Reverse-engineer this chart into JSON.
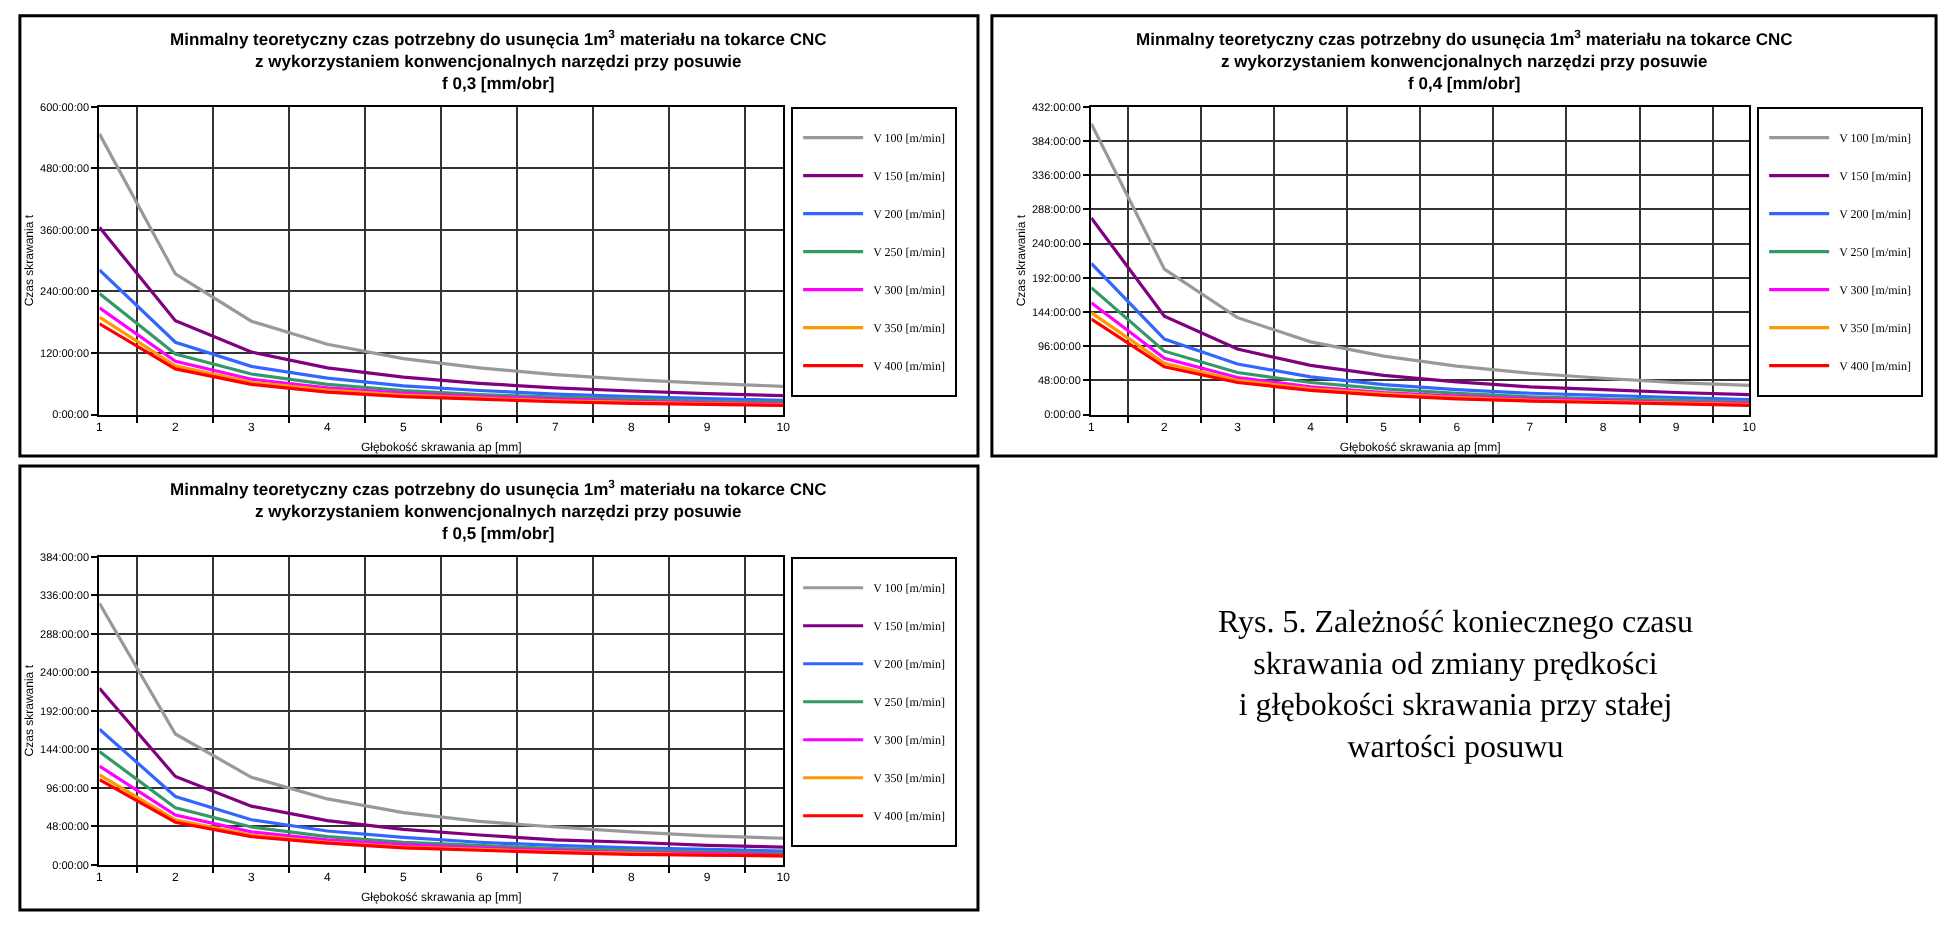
{
  "chart_data": [
    {
      "type": "line",
      "title": "Minmalny teoretyczny czas potrzebny do usunęcia 1m$^{3}$ materiału na tokarce CNC\nz wykorzystaniem konwencjonalnych narzędzi przy posuwie\nf 0,3 [mm/obr]",
      "xlabel": "Głębokość skrawania ap [mm]",
      "ylabel": "Czas skrawania t",
      "categories": [
        "1",
        "2",
        "3",
        "4",
        "5",
        "6",
        "7",
        "8",
        "9",
        "10"
      ],
      "ylim": [
        0,
        600
      ],
      "yticks": [
        {
          "value": 0,
          "label": "0:00:00"
        },
        {
          "value": 120,
          "label": "120:00:00"
        },
        {
          "value": 240,
          "label": "240:00:00"
        },
        {
          "value": 360,
          "label": "360:00:00"
        },
        {
          "value": 480,
          "label": "480:00:00"
        },
        {
          "value": 600,
          "label": "600:00:00"
        }
      ],
      "grid": true,
      "legend": "right",
      "series": [
        {
          "name": "V 100 [m/min]",
          "color": "#999999",
          "values": [
            547,
            274,
            182,
            137,
            109,
            91,
            78,
            68,
            61,
            55
          ]
        },
        {
          "name": "V 150 [m/min]",
          "color": "#800080",
          "values": [
            365,
            183,
            122,
            91,
            73,
            61,
            52,
            46,
            41,
            37
          ]
        },
        {
          "name": "V 200 [m/min]",
          "color": "#3366ff",
          "values": [
            282,
            141,
            94,
            71,
            56,
            47,
            40,
            35,
            31,
            28
          ]
        },
        {
          "name": "V 250 [m/min]",
          "color": "#339966",
          "values": [
            236,
            118,
            79,
            59,
            47,
            39,
            34,
            30,
            26,
            24
          ]
        },
        {
          "name": "V 300 [m/min]",
          "color": "#ff00ff",
          "values": [
            208,
            104,
            69,
            52,
            42,
            35,
            30,
            26,
            23,
            21
          ]
        },
        {
          "name": "V 350 [m/min]",
          "color": "#ff9900",
          "values": [
            190,
            95,
            63,
            48,
            38,
            32,
            27,
            24,
            21,
            19
          ]
        },
        {
          "name": "V 400 [m/min]",
          "color": "#ff0000",
          "values": [
            177,
            89,
            59,
            44,
            35,
            30,
            25,
            22,
            20,
            18
          ]
        }
      ]
    },
    {
      "type": "line",
      "title": "Minmalny teoretyczny czas potrzebny do usunęcia 1m$^{3}$ materiału na tokarce CNC\nz wykorzystaniem konwencjonalnych narzędzi przy posuwie\nf 0,4 [mm/obr]",
      "xlabel": "Głębokość skrawania ap [mm]",
      "ylabel": "Czas skrawania t",
      "categories": [
        "1",
        "2",
        "3",
        "4",
        "5",
        "6",
        "7",
        "8",
        "9",
        "10"
      ],
      "ylim": [
        0,
        432
      ],
      "yticks": [
        {
          "value": 0,
          "label": "0:00:00"
        },
        {
          "value": 48,
          "label": "48:00:00"
        },
        {
          "value": 96,
          "label": "96:00:00"
        },
        {
          "value": 144,
          "label": "144:00:00"
        },
        {
          "value": 192,
          "label": "192:00:00"
        },
        {
          "value": 240,
          "label": "240:00:00"
        },
        {
          "value": 288,
          "label": "288:00:00"
        },
        {
          "value": 336,
          "label": "336:00:00"
        },
        {
          "value": 384,
          "label": "384:00:00"
        },
        {
          "value": 432,
          "label": "432:00:00"
        }
      ],
      "grid": true,
      "legend": "right",
      "series": [
        {
          "name": "V 100 [m/min]",
          "color": "#999999",
          "values": [
            408,
            204,
            136,
            102,
            82,
            68,
            58,
            51,
            45,
            41
          ]
        },
        {
          "name": "V 150 [m/min]",
          "color": "#800080",
          "values": [
            276,
            138,
            92,
            69,
            55,
            46,
            39,
            35,
            31,
            28
          ]
        },
        {
          "name": "V 200 [m/min]",
          "color": "#3366ff",
          "values": [
            212,
            106,
            71,
            53,
            42,
            35,
            30,
            27,
            24,
            21
          ]
        },
        {
          "name": "V 250 [m/min]",
          "color": "#339966",
          "values": [
            178,
            89,
            59,
            45,
            36,
            30,
            25,
            22,
            20,
            18
          ]
        },
        {
          "name": "V 300 [m/min]",
          "color": "#ff00ff",
          "values": [
            157,
            79,
            52,
            39,
            31,
            26,
            22,
            20,
            17,
            16
          ]
        },
        {
          "name": "V 350 [m/min]",
          "color": "#ff9900",
          "values": [
            143,
            72,
            48,
            36,
            29,
            24,
            20,
            18,
            16,
            14
          ]
        },
        {
          "name": "V 400 [m/min]",
          "color": "#ff0000",
          "values": [
            134,
            67,
            45,
            34,
            27,
            22,
            19,
            17,
            15,
            13
          ]
        }
      ]
    },
    {
      "type": "line",
      "title": "Minmalny teoretyczny czas potrzebny do usunęcia 1m$^{3}$ materiału na tokarce CNC\nz wykorzystaniem konwencjonalnych narzędzi przy posuwie\nf 0,5 [mm/obr]",
      "xlabel": "Głębokość skrawania ap [mm]",
      "ylabel": "Czas skrawania t",
      "categories": [
        "1",
        "2",
        "3",
        "4",
        "5",
        "6",
        "7",
        "8",
        "9",
        "10"
      ],
      "ylim": [
        0,
        384
      ],
      "yticks": [
        {
          "value": 0,
          "label": "0:00:00"
        },
        {
          "value": 48,
          "label": "48:00:00"
        },
        {
          "value": 96,
          "label": "96:00:00"
        },
        {
          "value": 144,
          "label": "144:00:00"
        },
        {
          "value": 192,
          "label": "192:00:00"
        },
        {
          "value": 240,
          "label": "240:00:00"
        },
        {
          "value": 288,
          "label": "288:00:00"
        },
        {
          "value": 336,
          "label": "336:00:00"
        },
        {
          "value": 384,
          "label": "384:00:00"
        }
      ],
      "grid": true,
      "legend": "right",
      "annotations": [
        "Rys. 5. Zależność koniecznego czasu\nskrawania od zmiany prędkości\ni głębokości skrawania przy stałej\nwartości posuwu"
      ],
      "series": [
        {
          "name": "V 100 [m/min]",
          "color": "#999999",
          "values": [
            326,
            163,
            109,
            82,
            65,
            54,
            47,
            41,
            36,
            33
          ]
        },
        {
          "name": "V 150 [m/min]",
          "color": "#800080",
          "values": [
            220,
            110,
            73,
            55,
            44,
            37,
            31,
            28,
            24,
            22
          ]
        },
        {
          "name": "V 200 [m/min]",
          "color": "#3366ff",
          "values": [
            169,
            85,
            56,
            42,
            34,
            28,
            24,
            21,
            19,
            17
          ]
        },
        {
          "name": "V 250 [m/min]",
          "color": "#339966",
          "values": [
            141,
            71,
            47,
            35,
            28,
            24,
            20,
            18,
            16,
            14
          ]
        },
        {
          "name": "V 300 [m/min]",
          "color": "#ff00ff",
          "values": [
            123,
            62,
            41,
            31,
            25,
            21,
            18,
            15,
            14,
            12
          ]
        },
        {
          "name": "V 350 [m/min]",
          "color": "#ff9900",
          "values": [
            112,
            56,
            37,
            28,
            22,
            19,
            16,
            14,
            12,
            11
          ]
        },
        {
          "name": "V 400 [m/min]",
          "color": "#ff0000",
          "values": [
            106,
            53,
            35,
            27,
            21,
            18,
            15,
            13,
            12,
            11
          ]
        }
      ]
    }
  ]
}
